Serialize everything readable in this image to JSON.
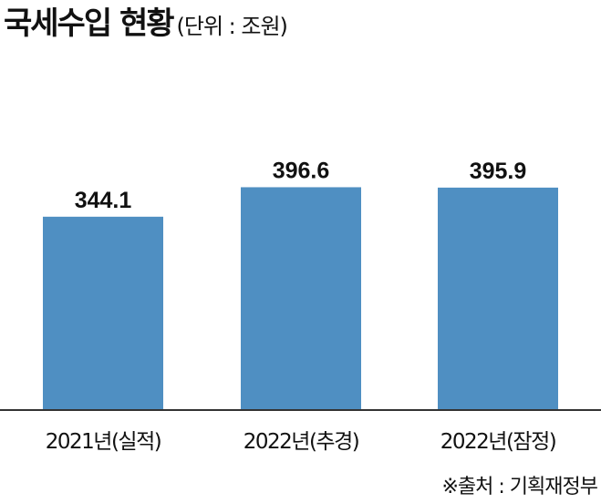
{
  "chart_data": {
    "type": "bar",
    "title": "국세수입 현황",
    "unit_note": "(단위 : 조원)",
    "categories": [
      "2021년(실적)",
      "2022년(추경)",
      "2022년(잠정)"
    ],
    "values": [
      344.1,
      396.6,
      395.9
    ],
    "value_labels": [
      "344.1",
      "396.6",
      "395.9"
    ],
    "ylim": [
      0,
      430
    ],
    "grid": false,
    "legend": "none",
    "bar_color": "#4f8fc2",
    "axis_color": "#333333"
  },
  "source": "※출처 : 기획재정부"
}
